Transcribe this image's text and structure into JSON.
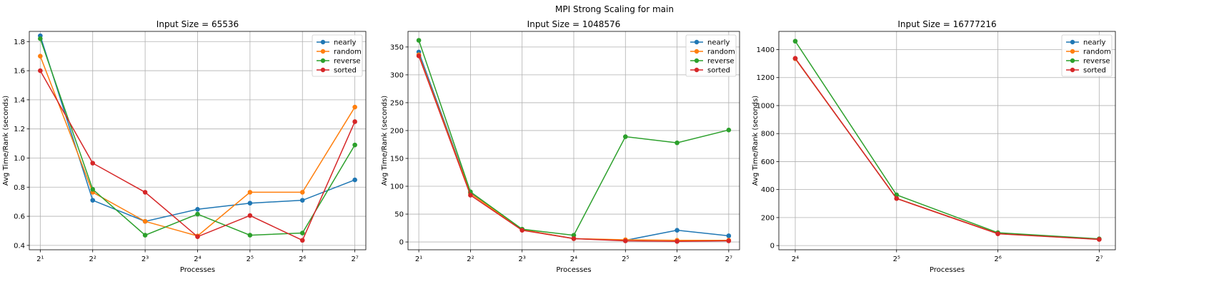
{
  "figure": {
    "suptitle": "MPI Strong Scaling for main"
  },
  "colors": {
    "nearly": "#1f77b4",
    "random": "#ff7f0e",
    "reverse": "#2ca02c",
    "sorted": "#d62728"
  },
  "chart_data": [
    {
      "type": "line",
      "title": "Input Size = 65536",
      "xlabel": "Processes",
      "ylabel": "Avg Time/Rank (seconds)",
      "x_scale": "log2",
      "x": [
        2,
        4,
        8,
        16,
        32,
        64,
        128
      ],
      "x_tick_labels": [
        "2¹",
        "2²",
        "2³",
        "2⁴",
        "2⁵",
        "2⁶",
        "2⁷"
      ],
      "xlim": [
        1.73,
        148
      ],
      "ylim": [
        0.37,
        1.87
      ],
      "yticks": [
        0.4,
        0.6,
        0.8,
        1.0,
        1.2,
        1.4,
        1.6,
        1.8
      ],
      "ytick_labels": [
        "0.4",
        "0.6",
        "0.8",
        "1.0",
        "1.2",
        "1.4",
        "1.6",
        "1.8"
      ],
      "grid": true,
      "legend": "top-right",
      "series": [
        {
          "name": "nearly",
          "values": [
            1.84,
            0.71,
            0.565,
            0.648,
            0.69,
            0.71,
            0.85
          ]
        },
        {
          "name": "random",
          "values": [
            1.7,
            0.765,
            0.565,
            0.465,
            0.765,
            0.765,
            1.35
          ]
        },
        {
          "name": "reverse",
          "values": [
            1.82,
            0.785,
            0.47,
            0.615,
            0.47,
            0.485,
            1.09
          ]
        },
        {
          "name": "sorted",
          "values": [
            1.6,
            0.965,
            0.765,
            0.46,
            0.605,
            0.435,
            1.25
          ]
        }
      ]
    },
    {
      "type": "line",
      "title": "Input Size = 1048576",
      "xlabel": "Processes",
      "ylabel": "Avg Time/Rank (seconds)",
      "x_scale": "log2",
      "x": [
        2,
        4,
        8,
        16,
        32,
        64,
        128
      ],
      "x_tick_labels": [
        "2¹",
        "2²",
        "2³",
        "2⁴",
        "2⁵",
        "2⁶",
        "2⁷"
      ],
      "xlim": [
        1.73,
        148
      ],
      "ylim": [
        -14,
        378
      ],
      "yticks": [
        0,
        50,
        100,
        150,
        200,
        250,
        300,
        350
      ],
      "ytick_labels": [
        "0",
        "50",
        "100",
        "150",
        "200",
        "250",
        "300",
        "350"
      ],
      "grid": true,
      "legend": "top-right",
      "series": [
        {
          "name": "nearly",
          "values": [
            341,
            88,
            22,
            6,
            3,
            21,
            11
          ]
        },
        {
          "name": "random",
          "values": [
            336,
            87,
            22,
            6,
            4,
            3,
            3
          ]
        },
        {
          "name": "reverse",
          "values": [
            362,
            90,
            23,
            12,
            189,
            178,
            201
          ]
        },
        {
          "name": "sorted",
          "values": [
            334,
            84,
            21,
            6,
            2,
            1,
            2
          ]
        }
      ]
    },
    {
      "type": "line",
      "title": "Input Size = 16777216",
      "xlabel": "Processes",
      "ylabel": "Avg Time/Rank (seconds)",
      "x_scale": "log2",
      "x": [
        16,
        32,
        64,
        128
      ],
      "x_tick_labels": [
        "2⁴",
        "2⁵",
        "2⁶",
        "2⁷"
      ],
      "xlim": [
        14.3,
        143
      ],
      "ylim": [
        -30,
        1530
      ],
      "yticks": [
        0,
        200,
        400,
        600,
        800,
        1000,
        1200,
        1400
      ],
      "ytick_labels": [
        "0",
        "200",
        "400",
        "600",
        "800",
        "1000",
        "1200",
        "1400"
      ],
      "grid": true,
      "legend": "top-right",
      "series": [
        {
          "name": "nearly",
          "values": [
            1335,
            337,
            86,
            45
          ]
        },
        {
          "name": "random",
          "values": [
            1335,
            337,
            86,
            45
          ]
        },
        {
          "name": "reverse",
          "values": [
            1460,
            362,
            92,
            48
          ]
        },
        {
          "name": "sorted",
          "values": [
            1338,
            336,
            84,
            44
          ]
        }
      ]
    }
  ]
}
